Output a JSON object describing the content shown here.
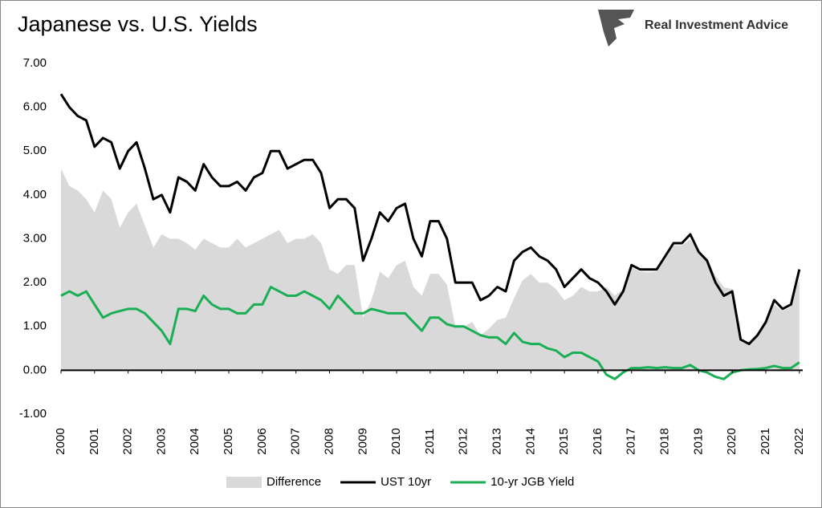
{
  "chart_data": {
    "type": "line",
    "title": "Japanese vs. U.S. Yields",
    "brand": "Real Investment Advice",
    "x": [
      2000,
      2000.25,
      2000.5,
      2000.75,
      2001,
      2001.25,
      2001.5,
      2001.75,
      2002,
      2002.25,
      2002.5,
      2002.75,
      2003,
      2003.25,
      2003.5,
      2003.75,
      2004,
      2004.25,
      2004.5,
      2004.75,
      2005,
      2005.25,
      2005.5,
      2005.75,
      2006,
      2006.25,
      2006.5,
      2006.75,
      2007,
      2007.25,
      2007.5,
      2007.75,
      2008,
      2008.25,
      2008.5,
      2008.75,
      2009,
      2009.25,
      2009.5,
      2009.75,
      2010,
      2010.25,
      2010.5,
      2010.75,
      2011,
      2011.25,
      2011.5,
      2011.75,
      2012,
      2012.25,
      2012.5,
      2012.75,
      2013,
      2013.25,
      2013.5,
      2013.75,
      2014,
      2014.25,
      2014.5,
      2014.75,
      2015,
      2015.25,
      2015.5,
      2015.75,
      2016,
      2016.25,
      2016.5,
      2016.75,
      2017,
      2017.25,
      2017.5,
      2017.75,
      2018,
      2018.25,
      2018.5,
      2018.75,
      2019,
      2019.25,
      2019.5,
      2019.75,
      2020,
      2020.25,
      2020.5,
      2020.75,
      2021,
      2021.25,
      2021.5,
      2021.75,
      2022
    ],
    "series": [
      {
        "name": "Difference",
        "color": "#d9d9d9",
        "area": true,
        "values": [
          4.6,
          4.2,
          4.1,
          3.9,
          3.6,
          4.1,
          3.9,
          3.25,
          3.6,
          3.8,
          3.3,
          2.8,
          3.1,
          3.0,
          3.0,
          2.9,
          2.75,
          3.0,
          2.9,
          2.8,
          2.8,
          3.0,
          2.8,
          2.9,
          3.0,
          3.1,
          3.2,
          2.9,
          3.0,
          3.0,
          3.1,
          2.9,
          2.3,
          2.2,
          2.4,
          2.4,
          1.2,
          1.6,
          2.25,
          2.1,
          2.4,
          2.5,
          1.9,
          1.7,
          2.2,
          2.2,
          1.95,
          1.0,
          1.0,
          1.1,
          0.8,
          0.95,
          1.15,
          1.2,
          1.65,
          2.05,
          2.2,
          2.0,
          2.0,
          1.85,
          1.6,
          1.7,
          1.9,
          1.8,
          1.8,
          1.9,
          1.7,
          1.85,
          2.35,
          2.25,
          2.23,
          2.25,
          2.53,
          2.85,
          2.85,
          2.98,
          2.7,
          2.55,
          2.15,
          1.9,
          1.85,
          0.7,
          0.58,
          0.77,
          1.05,
          1.5,
          1.35,
          1.45,
          2.1
        ]
      },
      {
        "name": "UST 10yr",
        "color": "#000000",
        "values": [
          6.3,
          6.0,
          5.8,
          5.7,
          5.1,
          5.3,
          5.2,
          4.6,
          5.0,
          5.2,
          4.6,
          3.9,
          4.0,
          3.6,
          4.4,
          4.3,
          4.1,
          4.7,
          4.4,
          4.2,
          4.2,
          4.3,
          4.1,
          4.4,
          4.5,
          5.0,
          5.0,
          4.6,
          4.7,
          4.8,
          4.8,
          4.5,
          3.7,
          3.9,
          3.9,
          3.7,
          2.5,
          3.0,
          3.6,
          3.4,
          3.7,
          3.8,
          3.0,
          2.6,
          3.4,
          3.4,
          3.0,
          2.0,
          2.0,
          2.0,
          1.6,
          1.7,
          1.9,
          1.8,
          2.5,
          2.7,
          2.8,
          2.6,
          2.5,
          2.3,
          1.9,
          2.1,
          2.3,
          2.1,
          2.0,
          1.8,
          1.5,
          1.8,
          2.4,
          2.3,
          2.3,
          2.3,
          2.6,
          2.9,
          2.9,
          3.1,
          2.7,
          2.5,
          2.0,
          1.7,
          1.8,
          0.7,
          0.6,
          0.8,
          1.1,
          1.6,
          1.4,
          1.5,
          2.3
        ]
      },
      {
        "name": "10-yr JGB Yield",
        "color": "#1aaf54",
        "values": [
          1.7,
          1.8,
          1.7,
          1.8,
          1.5,
          1.2,
          1.3,
          1.35,
          1.4,
          1.4,
          1.3,
          1.1,
          0.9,
          0.6,
          1.4,
          1.4,
          1.35,
          1.7,
          1.5,
          1.4,
          1.4,
          1.3,
          1.3,
          1.5,
          1.5,
          1.9,
          1.8,
          1.7,
          1.7,
          1.8,
          1.7,
          1.6,
          1.4,
          1.7,
          1.5,
          1.3,
          1.3,
          1.4,
          1.35,
          1.3,
          1.3,
          1.3,
          1.1,
          0.9,
          1.2,
          1.2,
          1.05,
          1.0,
          1.0,
          0.9,
          0.8,
          0.75,
          0.75,
          0.6,
          0.85,
          0.65,
          0.6,
          0.6,
          0.5,
          0.45,
          0.3,
          0.4,
          0.4,
          0.3,
          0.2,
          -0.1,
          -0.2,
          -0.05,
          0.05,
          0.05,
          0.07,
          0.05,
          0.07,
          0.05,
          0.05,
          0.12,
          0.0,
          -0.05,
          -0.15,
          -0.2,
          -0.05,
          0.0,
          0.02,
          0.03,
          0.05,
          0.1,
          0.05,
          0.05,
          0.18
        ]
      }
    ],
    "xlim": [
      2000,
      2022.1
    ],
    "xticks": [
      2000,
      2001,
      2002,
      2003,
      2004,
      2005,
      2006,
      2007,
      2008,
      2009,
      2010,
      2011,
      2012,
      2013,
      2014,
      2015,
      2016,
      2017,
      2018,
      2019,
      2020,
      2021,
      2022
    ],
    "ylim": [
      -1,
      7
    ],
    "yticks": [
      {
        "value": -1,
        "label": "-1.00"
      },
      {
        "value": 0,
        "label": "0.00"
      },
      {
        "value": 1,
        "label": "1.00"
      },
      {
        "value": 2,
        "label": "2.00"
      },
      {
        "value": 3,
        "label": "3.00"
      },
      {
        "value": 4,
        "label": "4.00"
      },
      {
        "value": 5,
        "label": "5.00"
      },
      {
        "value": 6,
        "label": "6.00"
      },
      {
        "value": 7,
        "label": "7.00"
      }
    ],
    "legend": "bottom"
  }
}
